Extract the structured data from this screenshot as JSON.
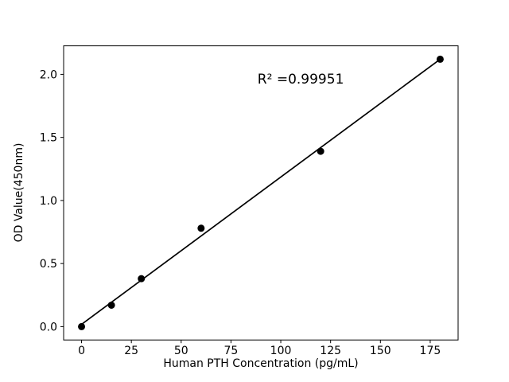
{
  "figure": {
    "background": "#ffffff"
  },
  "chart_data": {
    "type": "scatter",
    "title": "",
    "xlabel": "Human PTH Concentration (pg/mL)",
    "ylabel": "OD Value(450nm)",
    "x": [
      0,
      15,
      30,
      60,
      120,
      180
    ],
    "y": [
      0.0,
      0.17,
      0.38,
      0.78,
      1.39,
      2.12
    ],
    "fit_line": {
      "x0": 0,
      "y0": 0.018,
      "x1": 180,
      "y1": 2.12
    },
    "annotation": {
      "text": "R² =0.99951",
      "x": 110,
      "y": 1.96
    },
    "xticks": {
      "values": [
        0,
        25,
        50,
        75,
        100,
        125,
        150,
        175
      ],
      "labels": [
        "0",
        "25",
        "50",
        "75",
        "100",
        "125",
        "150",
        "175"
      ]
    },
    "yticks": {
      "values": [
        0.0,
        0.5,
        1.0,
        1.5,
        2.0
      ],
      "labels": [
        "0.0",
        "0.5",
        "1.0",
        "1.5",
        "2.0"
      ]
    },
    "xlim": [
      -9,
      189
    ],
    "ylim": [
      -0.106,
      2.226
    ],
    "grid": false,
    "legend": false,
    "marker_color": "#000000",
    "line_color": "#000000",
    "axis_color": "#000000"
  }
}
